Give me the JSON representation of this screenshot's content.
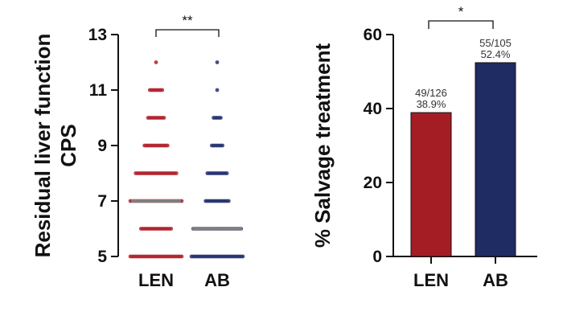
{
  "chart_data": [
    {
      "type": "scatter",
      "ylabel_line1": "Residual liver function",
      "ylabel_line2": "CPS",
      "xlabel": "",
      "categories": [
        "LEN",
        "AB"
      ],
      "ylim": [
        5,
        13
      ],
      "yticks": [
        5,
        7,
        9,
        11,
        13
      ],
      "series": [
        {
          "name": "LEN",
          "color": "#b0202a",
          "points": [
            {
              "y": 5,
              "n": 30
            },
            {
              "y": 6,
              "n": 18
            },
            {
              "y": 7,
              "n": 30
            },
            {
              "y": 8,
              "n": 24
            },
            {
              "y": 9,
              "n": 14
            },
            {
              "y": 10,
              "n": 10
            },
            {
              "y": 11,
              "n": 8
            },
            {
              "y": 12,
              "n": 1
            }
          ],
          "median": 7
        },
        {
          "name": "AB",
          "color": "#23306e",
          "points": [
            {
              "y": 5,
              "n": 30
            },
            {
              "y": 6,
              "n": 28
            },
            {
              "y": 7,
              "n": 14
            },
            {
              "y": 8,
              "n": 12
            },
            {
              "y": 9,
              "n": 7
            },
            {
              "y": 10,
              "n": 5
            },
            {
              "y": 11,
              "n": 1
            },
            {
              "y": 12,
              "n": 1
            }
          ],
          "median": 6
        }
      ],
      "median_color": "#7f7f7f",
      "significance": "**"
    },
    {
      "type": "bar",
      "ylabel": "% Salvage treatment",
      "xlabel": "",
      "categories": [
        "LEN",
        "AB"
      ],
      "values": [
        38.9,
        52.4
      ],
      "colors": [
        "#a51d24",
        "#1f2b63"
      ],
      "ylim": [
        0,
        60
      ],
      "yticks": [
        0,
        20,
        40,
        60
      ],
      "annotations": [
        {
          "fraction": "49/126",
          "percent": "38.9%"
        },
        {
          "fraction": "55/105",
          "percent": "52.4%"
        }
      ],
      "significance": "*"
    }
  ]
}
